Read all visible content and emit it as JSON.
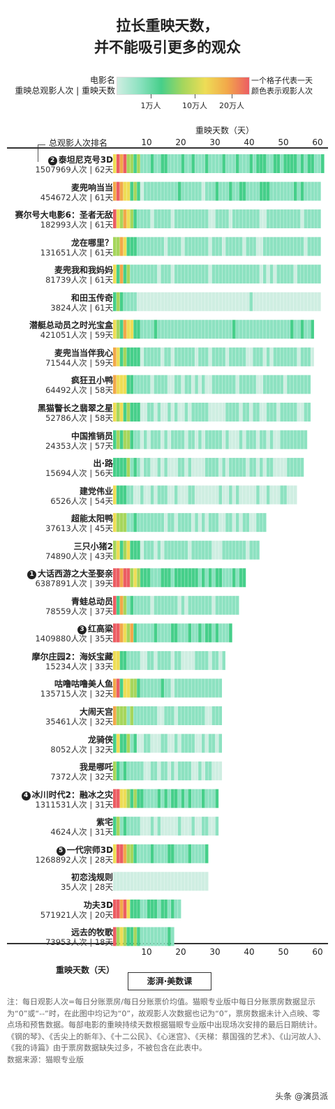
{
  "title": {
    "line1": "拉长重映天数，",
    "line2": "并不能吸引更多的观众"
  },
  "legend": {
    "title_line1": "电影名",
    "title_line2": "重映总观影人次 | 重映天数",
    "note_line1": "一个格子代表一天",
    "note_line2": "颜色表示观影人次",
    "ticks": [
      {
        "label": "1万人",
        "value": 10000
      },
      {
        "label": "10万人",
        "value": 100000
      },
      {
        "label": "20万人",
        "value": 200000
      }
    ],
    "colors": [
      "#cfeee2",
      "#8de2c1",
      "#46cf8a",
      "#a6d65c",
      "#eedd56",
      "#f2a84a",
      "#ec5d63"
    ]
  },
  "axis": {
    "rank_label": "总观影人次排名",
    "days_title_top": "重映天数（天）",
    "days_title_bottom": "重映天数（天）",
    "ticks": [
      "10",
      "20",
      "30",
      "40",
      "50",
      "60"
    ]
  },
  "chart_data": {
    "type": "heatmap",
    "xlabel": "重映天数（天）",
    "xlim": [
      0,
      61
    ],
    "x_ticks": [
      10,
      20,
      30,
      40,
      50,
      60
    ],
    "rows": [
      {
        "name": "泰坦尼克号3D",
        "stat": "1507969人次 | 62天",
        "audience": 1507969,
        "days": 62,
        "rank": "2"
      },
      {
        "name": "麦兜响当当",
        "stat": "454672人次 | 61天",
        "audience": 454672,
        "days": 61,
        "rank": ""
      },
      {
        "name": "赛尔号大电影6：圣者无敌",
        "stat": "182993人次 | 61天",
        "audience": 182993,
        "days": 61,
        "rank": ""
      },
      {
        "name": "龙在哪里？",
        "stat": "131651人次 | 61天",
        "audience": 131651,
        "days": 61,
        "rank": ""
      },
      {
        "name": "麦兜我和我妈妈",
        "stat": "81739人次 | 61天",
        "audience": 81739,
        "days": 61,
        "rank": ""
      },
      {
        "name": "和田玉传奇",
        "stat": "3824人次 | 61天",
        "audience": 3824,
        "days": 61,
        "rank": ""
      },
      {
        "name": "潜艇总动员之时光宝盒",
        "stat": "421051人次 | 59天",
        "audience": 421051,
        "days": 59,
        "rank": ""
      },
      {
        "name": "麦兜当当伴我心",
        "stat": "71544人次 | 59天",
        "audience": 71544,
        "days": 59,
        "rank": ""
      },
      {
        "name": "疯狂丑小鸭",
        "stat": "64492人次 | 58天",
        "audience": 64492,
        "days": 58,
        "rank": ""
      },
      {
        "name": "黑猫警长之翡翠之星",
        "stat": "52786人次 | 58天",
        "audience": 52786,
        "days": 58,
        "rank": ""
      },
      {
        "name": "中国推销员",
        "stat": "24353人次 | 57天",
        "audience": 24353,
        "days": 57,
        "rank": ""
      },
      {
        "name": "出·路",
        "stat": "15694人次 | 56天",
        "audience": 15694,
        "days": 56,
        "rank": ""
      },
      {
        "name": "建党伟业",
        "stat": "6526人次 | 54天",
        "audience": 6526,
        "days": 54,
        "rank": ""
      },
      {
        "name": "超能太阳鸭",
        "stat": "37613人次 | 45天",
        "audience": 37613,
        "days": 45,
        "rank": ""
      },
      {
        "name": "三只小猪2",
        "stat": "74890人次 | 43天",
        "audience": 74890,
        "days": 43,
        "rank": ""
      },
      {
        "name": "大话西游之大圣娶亲",
        "stat": "6387891人次 | 39天",
        "audience": 6387891,
        "days": 39,
        "rank": "1"
      },
      {
        "name": "青蛙总动员",
        "stat": "78559人次 | 37天",
        "audience": 78559,
        "days": 37,
        "rank": ""
      },
      {
        "name": "红高粱",
        "stat": "1409880人次 | 35天",
        "audience": 1409880,
        "days": 35,
        "rank": "3"
      },
      {
        "name": "摩尔庄园2：海妖宝藏",
        "stat": "15234人次 | 33天",
        "audience": 15234,
        "days": 33,
        "rank": ""
      },
      {
        "name": "咕噜咕噜美人鱼",
        "stat": "135715人次 | 32天",
        "audience": 135715,
        "days": 32,
        "rank": ""
      },
      {
        "name": "大闹天宫",
        "stat": "35461人次 | 32天",
        "audience": 35461,
        "days": 32,
        "rank": ""
      },
      {
        "name": "龙骑侠",
        "stat": "8052人次 | 32天",
        "audience": 8052,
        "days": 32,
        "rank": ""
      },
      {
        "name": "我是哪吒",
        "stat": "7372人次 | 32天",
        "audience": 7372,
        "days": 32,
        "rank": ""
      },
      {
        "name": "冰川时代2：融冰之灾",
        "stat": "1311531人次 | 31天",
        "audience": 1311531,
        "days": 31,
        "rank": "4"
      },
      {
        "name": "紫宅",
        "stat": "4624人次 | 31天",
        "audience": 4624,
        "days": 31,
        "rank": ""
      },
      {
        "name": "一代宗师3D",
        "stat": "1268892人次 | 28天",
        "audience": 1268892,
        "days": 28,
        "rank": "5"
      },
      {
        "name": "初恋浅规则",
        "stat": "35人次 | 28天",
        "audience": 35,
        "days": 28,
        "rank": ""
      },
      {
        "name": "功夫3D",
        "stat": "571921人次 | 20天",
        "audience": 571921,
        "days": 20,
        "rank": ""
      },
      {
        "name": "远去的牧歌",
        "stat": "73953人次 | 18天",
        "audience": 73953,
        "days": 18,
        "rank": ""
      }
    ]
  },
  "logo_text": "澎湃·美数课",
  "footnote": "注：每日观影人次=每日分账票房/每日分账票价均值。猫眼专业版中每日分账票房数据显示为“0”或“--”时，在此图中均记为“0”，故观影人次数据也记为“0”，票房数据未计入点映、零点场和预售数据。每部电影的重映持续天数根据猫眼专业版中出现场次安排的最后日期统计。《钢的琴》、《舌尖上的新年》、《十二公民》、《心迷宫》、《天梯：蔡国强的艺术》、《山河故人》、《我的诗篇》由于票房数据缺失过多，不被包含在此表中。",
  "source": "数据来源：猫眼专业版",
  "watermark": "头条 @演员派"
}
